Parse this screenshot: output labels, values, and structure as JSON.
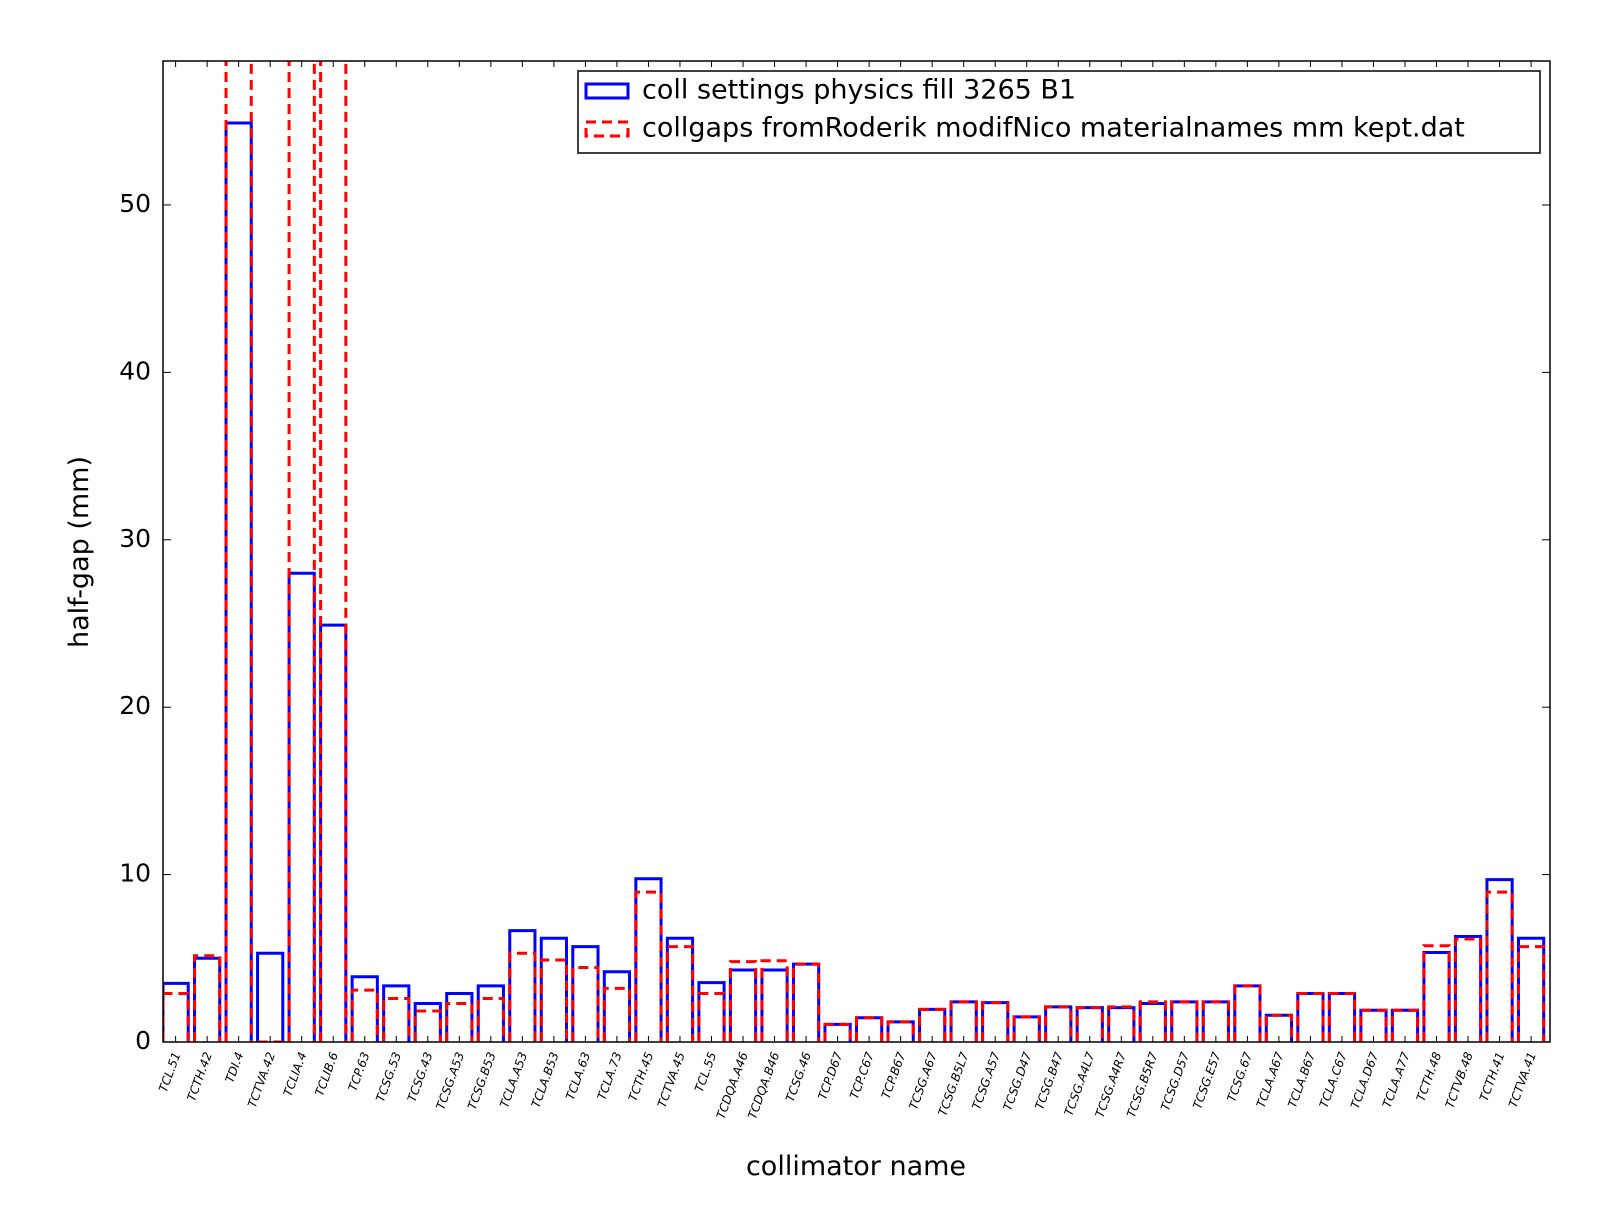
{
  "chart_data": {
    "type": "bar",
    "xlabel": "collimator name",
    "ylabel": "half-gap (mm)",
    "categories": [
      "TCL.51",
      "TCTH.42",
      "TDI.4",
      "TCTVA.42",
      "TCLIA.4",
      "TCLIB.6",
      "TCP.63",
      "TCSG.53",
      "TCSG.43",
      "TCSG.A53",
      "TCSG.B53",
      "TCLA.A53",
      "TCLA.B53",
      "TCLA.63",
      "TCLA.73",
      "TCTH.45",
      "TCTVA.45",
      "TCL.55",
      "TCDQA.A46",
      "TCDQA.B46",
      "TCSG.46",
      "TCP.D67",
      "TCP.C67",
      "TCP.B67",
      "TCSG.A67",
      "TCSG.B5L7",
      "TCSG.A57",
      "TCSG.D47",
      "TCSG.B47",
      "TCSG.A4L7",
      "TCSG.A4R7",
      "TCSG.B5R7",
      "TCSG.D57",
      "TCSG.E57",
      "TCSG.67",
      "TCLA.A67",
      "TCLA.B67",
      "TCLA.C67",
      "TCLA.D67",
      "TCLA.A77",
      "TCTH.48",
      "TCTVB.48",
      "TCTH.41",
      "TCTVA.41"
    ],
    "series": [
      {
        "name": "coll settings physics fill 3265 B1",
        "color": "#0000ff",
        "dashed": false,
        "values": [
          3.5,
          5.0,
          54.9,
          5.3,
          28.0,
          24.9,
          3.9,
          3.35,
          2.3,
          2.9,
          3.35,
          6.65,
          6.2,
          5.7,
          4.2,
          9.75,
          6.2,
          3.55,
          4.3,
          4.3,
          4.65,
          1.05,
          1.45,
          1.2,
          1.95,
          2.4,
          2.35,
          1.5,
          2.1,
          2.05,
          2.05,
          2.3,
          2.4,
          2.4,
          3.35,
          1.6,
          2.9,
          2.9,
          1.9,
          1.9,
          5.35,
          6.3,
          9.7,
          6.2
        ]
      },
      {
        "name": "collgaps fromRoderik modifNico materialnames mm kept.dat",
        "color": "#ff0000",
        "dashed": true,
        "values": [
          2.9,
          5.15,
          60,
          0,
          60,
          60,
          3.1,
          2.6,
          1.85,
          2.3,
          2.6,
          5.3,
          4.9,
          4.45,
          3.2,
          8.95,
          5.7,
          2.9,
          4.8,
          4.85,
          4.65,
          1.05,
          1.45,
          1.2,
          1.95,
          2.4,
          2.35,
          1.5,
          2.1,
          2.05,
          2.1,
          2.4,
          2.4,
          2.4,
          3.35,
          1.6,
          2.9,
          2.9,
          1.9,
          1.9,
          5.75,
          6.15,
          8.95,
          5.7
        ]
      }
    ],
    "ylim": [
      0,
      58.6
    ],
    "yticks": [
      0,
      10,
      20,
      30,
      40,
      50
    ],
    "legend": "upper right"
  }
}
